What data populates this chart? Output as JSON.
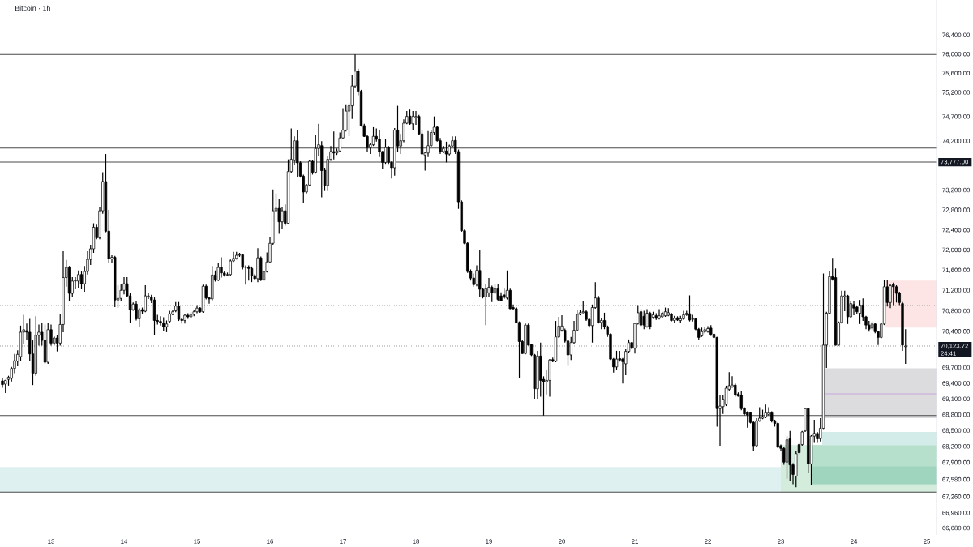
{
  "chart_data": {
    "type": "candlestick",
    "title": "Bitcoin · 1h",
    "x": [
      12.3333,
      12.375,
      12.4167,
      12.4583,
      12.5,
      12.5417,
      12.5833,
      12.625,
      12.6667,
      12.7083,
      12.75,
      12.7917,
      12.8333,
      12.875,
      12.9167,
      12.9583,
      13,
      13.0417,
      13.0833,
      13.125,
      13.1667,
      13.2083,
      13.25,
      13.2917,
      13.3333,
      13.375,
      13.4167,
      13.4583,
      13.5,
      13.5417,
      13.5833,
      13.625,
      13.6667,
      13.7083,
      13.75,
      13.7917,
      13.8333,
      13.875,
      13.9167,
      13.9583,
      14,
      14.0417,
      14.0833,
      14.125,
      14.1667,
      14.2083,
      14.25,
      14.2917,
      14.3333,
      14.375,
      14.4167,
      14.4583,
      14.5,
      14.5417,
      14.5833,
      14.625,
      14.6667,
      14.7083,
      14.75,
      14.7917,
      14.8333,
      14.875,
      14.9167,
      14.9583,
      15,
      15.0417,
      15.0833,
      15.125,
      15.1667,
      15.2083,
      15.25,
      15.2917,
      15.3333,
      15.375,
      15.4167,
      15.4583,
      15.5,
      15.5417,
      15.5833,
      15.625,
      15.6667,
      15.7083,
      15.75,
      15.7917,
      15.8333,
      15.875,
      15.9167,
      15.9583,
      16,
      16.0417,
      16.0833,
      16.125,
      16.1667,
      16.2083,
      16.25,
      16.2917,
      16.3333,
      16.375,
      16.4167,
      16.4583,
      16.5,
      16.5417,
      16.5833,
      16.625,
      16.6667,
      16.7083,
      16.75,
      16.7917,
      16.8333,
      16.875,
      16.9167,
      16.9583,
      17,
      17.0417,
      17.0833,
      17.125,
      17.1667,
      17.2083,
      17.25,
      17.2917,
      17.3333,
      17.375,
      17.4167,
      17.4583,
      17.5,
      17.5417,
      17.5833,
      17.625,
      17.6667,
      17.7083,
      17.75,
      17.7917,
      17.8333,
      17.875,
      17.9167,
      17.9583,
      18,
      18.0417,
      18.0833,
      18.125,
      18.1667,
      18.2083,
      18.25,
      18.2917,
      18.3333,
      18.375,
      18.4167,
      18.4583,
      18.5,
      18.5417,
      18.5833,
      18.625,
      18.6667,
      18.7083,
      18.75,
      18.7917,
      18.8333,
      18.875,
      18.9167,
      18.9583,
      19,
      19.0417,
      19.0833,
      19.125,
      19.1667,
      19.2083,
      19.25,
      19.2917,
      19.3333,
      19.375,
      19.4167,
      19.4583,
      19.5,
      19.5417,
      19.5833,
      19.625,
      19.6667,
      19.7083,
      19.75,
      19.7917,
      19.8333,
      19.875,
      19.9167,
      19.9583,
      20,
      20.0417,
      20.0833,
      20.125,
      20.1667,
      20.2083,
      20.25,
      20.2917,
      20.3333,
      20.375,
      20.4167,
      20.4583,
      20.5,
      20.5417,
      20.5833,
      20.625,
      20.6667,
      20.7083,
      20.75,
      20.7917,
      20.8333,
      20.875,
      20.9167,
      20.9583,
      21,
      21.0417,
      21.0833,
      21.125,
      21.1667,
      21.2083,
      21.25,
      21.2917,
      21.3333,
      21.375,
      21.4167,
      21.4583,
      21.5,
      21.5417,
      21.5833,
      21.625,
      21.6667,
      21.7083,
      21.75,
      21.7917,
      21.8333,
      21.875,
      21.9167,
      21.9583,
      22,
      22.0417,
      22.0833,
      22.125,
      22.1667,
      22.2083,
      22.25,
      22.2917,
      22.3333,
      22.375,
      22.4167,
      22.4583,
      22.5,
      22.5417,
      22.5833,
      22.625,
      22.6667,
      22.7083,
      22.75,
      22.7917,
      22.8333,
      22.875,
      22.9167,
      22.9583,
      23,
      23.0417,
      23.0833,
      23.125,
      23.1667,
      23.2083,
      23.25,
      23.2917,
      23.3333,
      23.375,
      23.4167,
      23.4583,
      23.5,
      23.5417,
      23.5833,
      23.625,
      23.6667,
      23.7083,
      23.75,
      23.7917,
      23.8333,
      23.875,
      23.9167,
      23.9583,
      24,
      24.0417,
      24.0833,
      24.125,
      24.1667,
      24.2083,
      24.25,
      24.2917,
      24.3333,
      24.375,
      24.4167,
      24.4583,
      24.5,
      24.5417,
      24.5833,
      24.625,
      24.6667,
      24.7083
    ],
    "ohlc": [
      [
        69450,
        69500,
        69320,
        69380
      ],
      [
        69390,
        69470,
        69220,
        69460
      ],
      [
        69480,
        69550,
        69360,
        69520
      ],
      [
        69500,
        69720,
        69440,
        69690
      ],
      [
        69690,
        69970,
        69600,
        69840
      ],
      [
        69830,
        70040,
        69730,
        69960
      ],
      [
        69920,
        70520,
        69840,
        70390
      ],
      [
        70390,
        70730,
        70160,
        70440
      ],
      [
        70420,
        70560,
        70230,
        70390
      ],
      [
        70390,
        70650,
        69840,
        69970
      ],
      [
        69970,
        70230,
        69370,
        69600
      ],
      [
        69600,
        70700,
        69550,
        70330
      ],
      [
        70330,
        70540,
        70130,
        70390
      ],
      [
        70390,
        70570,
        70130,
        70230
      ],
      [
        70230,
        70540,
        69780,
        69810
      ],
      [
        69810,
        70570,
        69780,
        70440
      ],
      [
        70440,
        70540,
        70130,
        70180
      ],
      [
        70180,
        70310,
        70130,
        70280
      ],
      [
        70280,
        70330,
        70020,
        70180
      ],
      [
        70180,
        70750,
        70130,
        70540
      ],
      [
        70540,
        71980,
        70390,
        71460
      ],
      [
        71460,
        71810,
        71280,
        71660
      ],
      [
        71660,
        71690,
        70990,
        71150
      ],
      [
        71150,
        71470,
        71070,
        71390
      ],
      [
        71390,
        71470,
        71230,
        71400
      ],
      [
        71390,
        71600,
        71260,
        71520
      ],
      [
        71520,
        71580,
        71230,
        71340
      ],
      [
        71340,
        71690,
        71180,
        71580
      ],
      [
        71580,
        71980,
        71520,
        71820
      ],
      [
        71820,
        72110,
        71710,
        72030
      ],
      [
        72030,
        72540,
        71950,
        72460
      ],
      [
        72460,
        72510,
        72220,
        72250
      ],
      [
        72250,
        72860,
        72220,
        72790
      ],
      [
        72790,
        73570,
        72730,
        73380
      ],
      [
        73380,
        73940,
        72360,
        72380
      ],
      [
        72380,
        72810,
        71740,
        71830
      ],
      [
        71830,
        71900,
        71740,
        71860
      ],
      [
        71860,
        71890,
        70880,
        71020
      ],
      [
        71020,
        71310,
        70860,
        71050
      ],
      [
        71050,
        71340,
        70990,
        71210
      ],
      [
        71210,
        71470,
        71130,
        71340
      ],
      [
        71340,
        71470,
        71070,
        71100
      ],
      [
        71100,
        71150,
        70570,
        70830
      ],
      [
        70830,
        70970,
        70810,
        70940
      ],
      [
        70940,
        70990,
        70620,
        70650
      ],
      [
        70650,
        70860,
        70490,
        70830
      ],
      [
        70830,
        70870,
        70750,
        70800
      ],
      [
        70800,
        71310,
        70780,
        71100
      ],
      [
        71090,
        71150,
        71040,
        71100
      ],
      [
        71080,
        71120,
        70960,
        71020
      ],
      [
        71020,
        71070,
        70330,
        70620
      ],
      [
        70620,
        70730,
        70540,
        70600
      ],
      [
        70600,
        70700,
        70520,
        70570
      ],
      [
        70570,
        70680,
        70410,
        70500
      ],
      [
        70500,
        70620,
        70390,
        70550
      ],
      [
        70600,
        70810,
        70580,
        70750
      ],
      [
        70740,
        70830,
        70720,
        70790
      ],
      [
        70810,
        70980,
        70780,
        70900
      ],
      [
        70900,
        70980,
        70610,
        70640
      ],
      [
        70640,
        70670,
        70560,
        70620
      ],
      [
        70620,
        70740,
        70560,
        70720
      ],
      [
        70720,
        70760,
        70650,
        70690
      ],
      [
        70690,
        70780,
        70660,
        70740
      ],
      [
        70740,
        70830,
        70700,
        70790
      ],
      [
        70790,
        70920,
        70760,
        70860
      ],
      [
        70860,
        70880,
        70770,
        70790
      ],
      [
        70790,
        71320,
        70770,
        71290
      ],
      [
        71290,
        71320,
        71030,
        71060
      ],
      [
        71060,
        71080,
        70950,
        71040
      ],
      [
        71040,
        71690,
        71010,
        71510
      ],
      [
        71510,
        71600,
        71380,
        71410
      ],
      [
        71410,
        71740,
        71390,
        71660
      ],
      [
        71660,
        71860,
        71460,
        71550
      ],
      [
        71550,
        71580,
        71480,
        71510
      ],
      [
        71510,
        71560,
        71490,
        71520
      ],
      [
        71520,
        71820,
        71500,
        71790
      ],
      [
        71790,
        71970,
        71770,
        71840
      ],
      [
        71840,
        71970,
        71820,
        71900
      ],
      [
        71900,
        71950,
        71870,
        71910
      ],
      [
        71910,
        71930,
        71620,
        71660
      ],
      [
        71660,
        71700,
        71320,
        71670
      ],
      [
        71670,
        71700,
        71400,
        71640
      ],
      [
        71640,
        71680,
        71370,
        71500
      ],
      [
        71500,
        71530,
        71420,
        71440
      ],
      [
        71440,
        72040,
        71370,
        71850
      ],
      [
        71850,
        71880,
        71390,
        71420
      ],
      [
        71420,
        71600,
        71390,
        71580
      ],
      [
        71580,
        71960,
        71560,
        71770
      ],
      [
        71770,
        72270,
        71740,
        72140
      ],
      [
        72140,
        73220,
        72110,
        72790
      ],
      [
        72790,
        73140,
        72760,
        72840
      ],
      [
        72840,
        73030,
        72330,
        72570
      ],
      [
        72570,
        72870,
        72430,
        72790
      ],
      [
        72790,
        72920,
        72490,
        72540
      ],
      [
        72540,
        73830,
        72520,
        73580
      ],
      [
        73580,
        74460,
        73560,
        73830
      ],
      [
        73800,
        74300,
        73720,
        74210
      ],
      [
        74210,
        74430,
        73480,
        73760
      ],
      [
        73760,
        73790,
        73460,
        73490
      ],
      [
        73490,
        73520,
        72950,
        73170
      ],
      [
        73170,
        73330,
        73140,
        73310
      ],
      [
        73310,
        73810,
        73290,
        73790
      ],
      [
        73790,
        73810,
        73520,
        73570
      ],
      [
        73570,
        74320,
        73540,
        74050
      ],
      [
        74050,
        74560,
        73890,
        74130
      ],
      [
        74110,
        74200,
        73060,
        73600
      ],
      [
        73610,
        73660,
        73190,
        73300
      ],
      [
        73300,
        73900,
        73190,
        73830
      ],
      [
        73830,
        74100,
        73800,
        73990
      ],
      [
        73990,
        74400,
        73830,
        73960
      ],
      [
        73960,
        74050,
        73920,
        74000
      ],
      [
        74000,
        74380,
        73990,
        74270
      ],
      [
        74270,
        74880,
        74250,
        74430
      ],
      [
        74430,
        74960,
        74400,
        74820
      ],
      [
        74820,
        74980,
        74300,
        74930
      ],
      [
        74930,
        75560,
        74660,
        75340
      ],
      [
        75340,
        76000,
        75300,
        75650
      ],
      [
        75650,
        75700,
        75150,
        75230
      ],
      [
        75230,
        75260,
        74500,
        74520
      ],
      [
        74520,
        74560,
        74290,
        74300
      ],
      [
        74300,
        74330,
        73990,
        74070
      ],
      [
        74070,
        74170,
        73940,
        74130
      ],
      [
        74130,
        74490,
        74100,
        74300
      ],
      [
        74300,
        74460,
        74190,
        74240
      ],
      [
        74240,
        74430,
        73880,
        73990
      ],
      [
        73990,
        74000,
        73630,
        73770
      ],
      [
        73770,
        74240,
        73740,
        74070
      ],
      [
        74070,
        74100,
        73740,
        73770
      ],
      [
        73770,
        73790,
        73440,
        73660
      ],
      [
        73660,
        74470,
        73500,
        74430
      ],
      [
        74430,
        74930,
        73990,
        74100
      ],
      [
        74100,
        74350,
        73940,
        74210
      ],
      [
        74210,
        74650,
        74180,
        74570
      ],
      [
        74570,
        74820,
        74550,
        74710
      ],
      [
        74720,
        74850,
        74540,
        74560
      ],
      [
        74560,
        74820,
        74430,
        74710
      ],
      [
        74690,
        74820,
        74540,
        74710
      ],
      [
        74710,
        74740,
        74320,
        74350
      ],
      [
        74350,
        74430,
        73940,
        73940
      ],
      [
        73920,
        73990,
        73600,
        73960
      ],
      [
        73960,
        74410,
        73880,
        74110
      ],
      [
        74110,
        74430,
        74090,
        74380
      ],
      [
        74380,
        74710,
        74330,
        74490
      ],
      [
        74490,
        74520,
        74190,
        74210
      ],
      [
        74210,
        74270,
        73940,
        73990
      ],
      [
        73990,
        74100,
        73960,
        74050
      ],
      [
        74000,
        74190,
        73770,
        73940
      ],
      [
        73940,
        74130,
        73910,
        74100
      ],
      [
        74100,
        74300,
        74080,
        74210
      ],
      [
        74220,
        74300,
        73940,
        73990
      ],
      [
        73990,
        74030,
        72830,
        72970
      ],
      [
        72970,
        73000,
        72370,
        72390
      ],
      [
        72390,
        72420,
        72120,
        72140
      ],
      [
        72140,
        72160,
        71550,
        71580
      ],
      [
        71580,
        71620,
        71400,
        71450
      ],
      [
        71450,
        71540,
        71280,
        71320
      ],
      [
        71330,
        71700,
        71290,
        71600
      ],
      [
        71600,
        72000,
        71080,
        71230
      ],
      [
        71230,
        71260,
        71050,
        71080
      ],
      [
        71080,
        71340,
        70530,
        71240
      ],
      [
        71160,
        71450,
        71080,
        71270
      ],
      [
        71270,
        71300,
        70980,
        71160
      ],
      [
        71160,
        71340,
        71130,
        71240
      ],
      [
        71240,
        71340,
        71000,
        71030
      ],
      [
        71100,
        71170,
        70990,
        71000
      ],
      [
        71120,
        71240,
        71040,
        71070
      ],
      [
        71060,
        71600,
        71030,
        71210
      ],
      [
        71210,
        71240,
        70840,
        70850
      ],
      [
        70870,
        70930,
        70820,
        70850
      ],
      [
        70850,
        70870,
        70570,
        70580
      ],
      [
        70580,
        70600,
        69510,
        70210
      ],
      [
        70210,
        70230,
        69970,
        69980
      ],
      [
        69980,
        70560,
        69960,
        70530
      ],
      [
        70530,
        70560,
        70130,
        70140
      ],
      [
        70150,
        70170,
        69930,
        69950
      ],
      [
        69950,
        69970,
        69110,
        69300
      ],
      [
        69300,
        70030,
        69110,
        69930
      ],
      [
        69930,
        70190,
        69150,
        69460
      ],
      [
        69480,
        69540,
        68790,
        69430
      ],
      [
        69430,
        69670,
        69190,
        69460
      ],
      [
        69460,
        69870,
        69150,
        69850
      ],
      [
        69860,
        69900,
        69810,
        69830
      ],
      [
        69830,
        70610,
        69810,
        70300
      ],
      [
        70300,
        70690,
        70280,
        70510
      ],
      [
        70430,
        70720,
        70400,
        70510
      ],
      [
        70430,
        70460,
        70190,
        70220
      ],
      [
        70220,
        70250,
        69740,
        69950
      ],
      [
        69950,
        70300,
        69850,
        70190
      ],
      [
        70190,
        70610,
        70160,
        70430
      ],
      [
        70430,
        70820,
        70420,
        70740
      ],
      [
        70740,
        70820,
        70720,
        70770
      ],
      [
        70770,
        70990,
        70760,
        70790
      ],
      [
        70790,
        70820,
        70610,
        70640
      ],
      [
        70640,
        70660,
        70480,
        70520
      ],
      [
        70520,
        70930,
        70190,
        70870
      ],
      [
        70870,
        71370,
        70850,
        71060
      ],
      [
        71060,
        71100,
        70560,
        70580
      ],
      [
        70580,
        70660,
        70450,
        70620
      ],
      [
        70620,
        70770,
        70450,
        70500
      ],
      [
        70500,
        70520,
        70300,
        70350
      ],
      [
        70350,
        70370,
        69850,
        69870
      ],
      [
        69870,
        69890,
        69610,
        69720
      ],
      [
        69720,
        70030,
        69660,
        69870
      ],
      [
        69880,
        70030,
        69820,
        69850
      ],
      [
        69870,
        69890,
        69400,
        69820
      ],
      [
        69780,
        70060,
        69560,
        70020
      ],
      [
        70020,
        70250,
        69990,
        70190
      ],
      [
        70190,
        70200,
        70060,
        70080
      ],
      [
        70080,
        70580,
        69980,
        70560
      ],
      [
        70560,
        70920,
        70540,
        70770
      ],
      [
        70790,
        70840,
        70480,
        70530
      ],
      [
        70700,
        70810,
        70450,
        70530
      ],
      [
        70500,
        70840,
        70480,
        70760
      ],
      [
        70760,
        70790,
        70450,
        70500
      ],
      [
        70680,
        70790,
        70650,
        70730
      ],
      [
        70710,
        70760,
        70630,
        70660
      ],
      [
        70660,
        70840,
        70640,
        70710
      ],
      [
        70690,
        70790,
        70670,
        70760
      ],
      [
        70710,
        70870,
        70690,
        70790
      ],
      [
        70720,
        70860,
        70700,
        70770
      ],
      [
        70740,
        70770,
        70600,
        70620
      ],
      [
        70620,
        70710,
        70580,
        70660
      ],
      [
        70670,
        70700,
        70610,
        70630
      ],
      [
        70620,
        70710,
        70580,
        70650
      ],
      [
        70650,
        70810,
        70630,
        70730
      ],
      [
        70730,
        70810,
        70710,
        70760
      ],
      [
        70750,
        71110,
        70600,
        70630
      ],
      [
        70640,
        70730,
        70600,
        70650
      ],
      [
        70650,
        70670,
        70430,
        70450
      ],
      [
        70450,
        70470,
        70240,
        70290
      ],
      [
        70320,
        70480,
        70300,
        70400
      ],
      [
        70400,
        70500,
        70370,
        70440
      ],
      [
        70400,
        70510,
        70380,
        70460
      ],
      [
        70470,
        70530,
        70320,
        70350
      ],
      [
        70350,
        70370,
        70270,
        70290
      ],
      [
        70290,
        70300,
        68580,
        68920
      ],
      [
        68920,
        69180,
        68220,
        68970
      ],
      [
        68960,
        69180,
        68820,
        69100
      ],
      [
        69000,
        69360,
        68970,
        69310
      ],
      [
        69290,
        69620,
        69260,
        69360
      ],
      [
        69340,
        69540,
        69320,
        69370
      ],
      [
        69370,
        69400,
        69150,
        69180
      ],
      [
        69200,
        69230,
        69150,
        69160
      ],
      [
        69180,
        69260,
        68890,
        68920
      ],
      [
        68930,
        68950,
        68790,
        68820
      ],
      [
        68850,
        68870,
        68560,
        68800
      ],
      [
        68840,
        68860,
        68640,
        68660
      ],
      [
        68660,
        68680,
        68120,
        68220
      ],
      [
        68220,
        68740,
        68200,
        68690
      ],
      [
        68690,
        68950,
        68670,
        68740
      ],
      [
        68740,
        68900,
        68720,
        68770
      ],
      [
        68760,
        69000,
        68740,
        68840
      ],
      [
        68810,
        68950,
        68790,
        68840
      ],
      [
        68840,
        68870,
        68660,
        68690
      ],
      [
        68690,
        68710,
        68580,
        68640
      ],
      [
        68640,
        68660,
        68180,
        68190
      ],
      [
        68220,
        68240,
        68120,
        68170
      ],
      [
        68170,
        68190,
        67860,
        67910
      ],
      [
        67910,
        68400,
        67600,
        68330
      ],
      [
        68350,
        68500,
        67550,
        67860
      ],
      [
        67860,
        67890,
        67500,
        67680
      ],
      [
        67650,
        68120,
        67440,
        68070
      ],
      [
        68240,
        68270,
        68060,
        68090
      ],
      [
        68240,
        68500,
        68220,
        68480
      ],
      [
        68500,
        68930,
        68480,
        68920
      ],
      [
        68920,
        68930,
        67700,
        67880
      ],
      [
        67880,
        68420,
        67490,
        68400
      ],
      [
        68400,
        68710,
        68270,
        68450
      ],
      [
        68450,
        68480,
        68270,
        68350
      ],
      [
        68350,
        68740,
        68300,
        68550
      ],
      [
        68550,
        71540,
        68520,
        70140
      ],
      [
        70140,
        70790,
        69700,
        70760
      ],
      [
        70760,
        71590,
        70740,
        71480
      ],
      [
        71480,
        71850,
        71400,
        71430
      ],
      [
        71460,
        71640,
        70130,
        70140
      ],
      [
        70140,
        70600,
        70130,
        70580
      ],
      [
        70580,
        71200,
        70560,
        71100
      ],
      [
        71080,
        71200,
        70800,
        71100
      ],
      [
        71100,
        71120,
        70550,
        70690
      ],
      [
        70690,
        71000,
        70660,
        70950
      ],
      [
        70930,
        70990,
        70720,
        70860
      ],
      [
        70880,
        70900,
        70740,
        70790
      ],
      [
        70760,
        71020,
        70550,
        70920
      ],
      [
        70920,
        71050,
        70610,
        70690
      ],
      [
        70690,
        70710,
        70450,
        70530
      ],
      [
        70530,
        70610,
        70400,
        70450
      ],
      [
        70470,
        70600,
        70430,
        70550
      ],
      [
        70550,
        70580,
        70370,
        70400
      ],
      [
        70400,
        70420,
        70140,
        70290
      ],
      [
        70290,
        70580,
        70270,
        70550
      ],
      [
        70550,
        71410,
        70530,
        71280
      ],
      [
        71280,
        71410,
        70890,
        70970
      ],
      [
        70970,
        71330,
        70860,
        71300
      ],
      [
        71330,
        71360,
        70920,
        71280
      ],
      [
        71280,
        71310,
        70970,
        71150
      ],
      [
        71150,
        71180,
        70920,
        70970
      ],
      [
        70950,
        70980,
        70030,
        70140
      ],
      [
        70110,
        70450,
        69780,
        70123.72
      ]
    ],
    "xlim": [
      12.3,
      25.1333
    ],
    "xticks": [
      13,
      14,
      15,
      16,
      17,
      18,
      19,
      20,
      21,
      22,
      23,
      24,
      25
    ],
    "ylim": [
      66560,
      77150
    ],
    "log": true,
    "yticks": [
      {
        "value": 76400,
        "label": "76,400.00"
      },
      {
        "value": 76000,
        "label": "76,000.00"
      },
      {
        "value": 75600,
        "label": "75,600.00"
      },
      {
        "value": 75200,
        "label": "75,200.00"
      },
      {
        "value": 74700,
        "label": "74,700.00"
      },
      {
        "value": 74200,
        "label": "74,200.00"
      },
      {
        "value": 73200,
        "label": "73,200.00"
      },
      {
        "value": 72800,
        "label": "72,800.00"
      },
      {
        "value": 72400,
        "label": "72,400.00"
      },
      {
        "value": 72000,
        "label": "72,000.00"
      },
      {
        "value": 71600,
        "label": "71,600.00"
      },
      {
        "value": 71200,
        "label": "71,200.00"
      },
      {
        "value": 70800,
        "label": "70,800.00"
      },
      {
        "value": 70400,
        "label": "70,400.00"
      },
      {
        "value": 69700,
        "label": "69,700.00"
      },
      {
        "value": 69400,
        "label": "69,400.00"
      },
      {
        "value": 69100,
        "label": "69,100.00"
      },
      {
        "value": 68800,
        "label": "68,800.00"
      },
      {
        "value": 68500,
        "label": "68,500.00"
      },
      {
        "value": 68200,
        "label": "68,200.00"
      },
      {
        "value": 67900,
        "label": "67,900.00"
      },
      {
        "value": 67580,
        "label": "67,580.00"
      },
      {
        "value": 67260,
        "label": "67,260.00"
      },
      {
        "value": 66960,
        "label": "66,960.00"
      },
      {
        "value": 66680,
        "label": "66,680.00"
      }
    ],
    "series": [
      {
        "type": "line",
        "x": [
          23,
          25.1333
        ],
        "values": [
          null,
          null
        ],
        "lower": [
          67350,
          67350
        ],
        "upper": [
          68230,
          68230
        ],
        "color": "#d3ecdc"
      },
      {
        "type": "line",
        "x": [
          23.4333,
          25.1333
        ],
        "values": [
          null,
          null
        ],
        "lower": [
          67500,
          67500
        ],
        "upper": [
          68230,
          68230
        ],
        "color": "#b6e0cb"
      },
      {
        "type": "line",
        "x": [
          23.4333,
          25.1333
        ],
        "values": [
          null,
          null
        ],
        "lower": [
          67500,
          67500
        ],
        "upper": [
          67830,
          67830
        ],
        "color": "#9fd5be"
      },
      {
        "type": "line",
        "x": [
          23.5667,
          25.1333
        ],
        "values": [
          null,
          null
        ],
        "lower": [
          68230,
          68230
        ],
        "upper": [
          68480,
          68480
        ],
        "color": "#d3ecea"
      },
      {
        "type": "line",
        "x": [
          23.5667,
          25.1333
        ],
        "values": [
          null,
          null
        ],
        "lower": [
          68740,
          68740
        ],
        "upper": [
          69690,
          69690
        ],
        "color": "#dcdcdf"
      },
      {
        "type": "line",
        "x": [
          23.5667,
          25.1333
        ],
        "values": [
          69205,
          69205
        ],
        "color": "#c9a3d9"
      },
      {
        "type": "line",
        "x": [
          24.4333,
          25.1333
        ],
        "values": [
          null,
          null
        ],
        "lower": [
          70480,
          70480
        ],
        "upper": [
          71400,
          71400
        ],
        "color": "#fde5e5"
      }
    ],
    "bands": [
      {
        "axis": "y",
        "from": 67350,
        "to": 67820,
        "color": "#dff0f0"
      }
    ],
    "ref_lines": [
      {
        "axis": "y",
        "value": 76000,
        "color": "#4a4a4a"
      },
      {
        "axis": "y",
        "value": 74060,
        "color": "#4a4a4a"
      },
      {
        "axis": "y",
        "value": 73777,
        "label": "73,777.00",
        "color": "#4a4a4a"
      },
      {
        "axis": "y",
        "value": 71830,
        "color": "#4a4a4a"
      },
      {
        "axis": "y",
        "value": 70910,
        "color": "#9a9a9a",
        "line_style": "dotted"
      },
      {
        "axis": "y",
        "value": 70123.72,
        "label": "70,123.72 24:41",
        "color": "#9a9a9a",
        "line_style": "dotted"
      },
      {
        "axis": "y",
        "value": 68790,
        "color": "#4a4a4a"
      },
      {
        "axis": "y",
        "value": 67350,
        "color": "#4a4a4a"
      }
    ]
  }
}
